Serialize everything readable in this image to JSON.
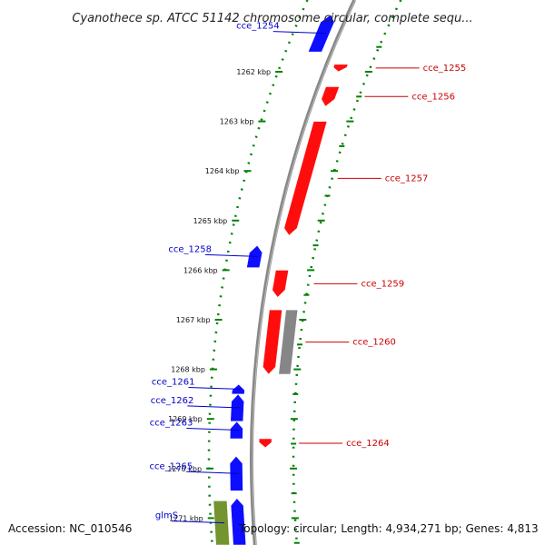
{
  "title": "Cyanothece sp. ATCC 51142 chromosome circular, complete sequ...",
  "footer": {
    "accession": "Accession: NC_010546",
    "topology": "Topology: circular; Length: 4,934,271 bp; Genes: 4,813"
  },
  "colors": {
    "forward": "#0000ff",
    "reverse": "#ff0000",
    "rna": "#808080",
    "highlight": "#6b8e23",
    "scale": "#008000",
    "backbone": "#888888"
  },
  "ruler": {
    "ticks": [
      {
        "kbp": 1262,
        "label": "1262 kbp"
      },
      {
        "kbp": 1263,
        "label": "1263 kbp"
      },
      {
        "kbp": 1264,
        "label": "1264 kbp"
      },
      {
        "kbp": 1265,
        "label": "1265 kbp"
      },
      {
        "kbp": 1266,
        "label": "1266 kbp"
      },
      {
        "kbp": 1267,
        "label": "1267 kbp"
      },
      {
        "kbp": 1268,
        "label": "1268 kbp"
      },
      {
        "kbp": 1269,
        "label": "1269 kbp"
      },
      {
        "kbp": 1270,
        "label": "1270 kbp"
      },
      {
        "kbp": 1271,
        "label": "1271 kbp"
      }
    ]
  },
  "genes": [
    {
      "label": "cce_1254",
      "strand": "forward",
      "start_kbp": 1260.85,
      "end_kbp": 1261.6
    },
    {
      "label": "cce_1255",
      "strand": "reverse",
      "start_kbp": 1261.85,
      "end_kbp": 1262.0
    },
    {
      "label": "cce_1256",
      "strand": "reverse",
      "start_kbp": 1262.3,
      "end_kbp": 1262.7
    },
    {
      "label": "cce_1257",
      "strand": "reverse",
      "start_kbp": 1263.0,
      "end_kbp": 1265.3
    },
    {
      "label": "cce_1258",
      "strand": "forward",
      "start_kbp": 1265.5,
      "end_kbp": 1265.95
    },
    {
      "label": "cce_1259",
      "strand": "reverse",
      "start_kbp": 1266.0,
      "end_kbp": 1266.55
    },
    {
      "label": "cce_1260",
      "strand": "reverse",
      "start_kbp": 1266.8,
      "end_kbp": 1268.1
    },
    {
      "label": "",
      "strand": "rna",
      "start_kbp": 1266.8,
      "end_kbp": 1268.1
    },
    {
      "label": "cce_1261",
      "strand": "forward",
      "start_kbp": 1268.3,
      "end_kbp": 1268.5
    },
    {
      "label": "cce_1262",
      "strand": "forward",
      "start_kbp": 1268.5,
      "end_kbp": 1269.05
    },
    {
      "label": "cce_1263",
      "strand": "forward",
      "start_kbp": 1269.05,
      "end_kbp": 1269.4
    },
    {
      "label": "cce_1264",
      "strand": "reverse",
      "start_kbp": 1269.4,
      "end_kbp": 1269.58
    },
    {
      "label": "cce_1265",
      "strand": "forward",
      "start_kbp": 1269.75,
      "end_kbp": 1270.45
    },
    {
      "label": "",
      "strand": "forward",
      "start_kbp": 1270.6,
      "end_kbp": 1271.65
    },
    {
      "label": "glmS",
      "strand": "highlight",
      "start_kbp": 1270.65,
      "end_kbp": 1271.65
    }
  ]
}
